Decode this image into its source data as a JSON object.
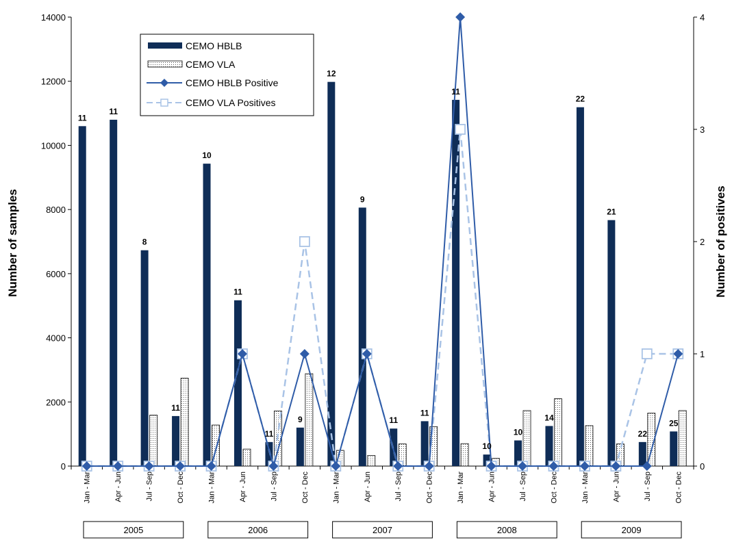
{
  "colors": {
    "hblb_bar": "#0f2d57",
    "hblb_line": "#2f5ca8",
    "vla_line": "#a9c3e6",
    "vla_bar_fill": "#ffffff",
    "vla_bar_dots": "#555555"
  },
  "chart_data": {
    "type": "bar",
    "title": "",
    "ylabel": "Number of samples",
    "y2label": "Number of positives",
    "ylim": [
      0,
      14000
    ],
    "y2lim": [
      0,
      4
    ],
    "yticks": [
      0,
      2000,
      4000,
      6000,
      8000,
      10000,
      12000,
      14000
    ],
    "y2ticks": [
      0,
      1,
      2,
      3,
      4
    ],
    "categories": [
      "Jan - Mar",
      "Apr - Jun",
      "Jul - Sep",
      "Oct - Dec",
      "Jan - Mar",
      "Apr - Jun",
      "Jul - Sep",
      "Oct - Dec",
      "Jan - Mar",
      "Apr - Jun",
      "Jul - Sep",
      "Oct - Dec",
      "Jan - Mar",
      "Apr - Jun",
      "Jul - Sep",
      "Oct - Dec",
      "Jan - Mar",
      "Apr - Jun",
      "Jul - Sep",
      "Oct - Dec"
    ],
    "groups": [
      {
        "label": "2005",
        "count": 4
      },
      {
        "label": "2006",
        "count": 4
      },
      {
        "label": "2007",
        "count": 4
      },
      {
        "label": "2008",
        "count": 4
      },
      {
        "label": "2009",
        "count": 4
      }
    ],
    "legend_position": "top-left",
    "grid": false,
    "series": [
      {
        "name": "CEMO HBLB",
        "type": "bar",
        "axis": "left",
        "values": [
          10600,
          10800,
          6730,
          1560,
          9430,
          5170,
          750,
          1200,
          11980,
          8060,
          1170,
          1400,
          11420,
          360,
          800,
          1250,
          11190,
          7670,
          750,
          1080
        ],
        "data_labels": [
          "11",
          "11",
          "8",
          "11",
          "10",
          "11",
          "11",
          "9",
          "12",
          "9",
          "11",
          "11",
          "11",
          "10",
          "10",
          "14",
          "22",
          "21",
          "22",
          "25"
        ]
      },
      {
        "name": "CEMO VLA",
        "type": "bar",
        "axis": "left",
        "values": [
          0,
          0,
          1590,
          2740,
          1280,
          530,
          1720,
          2880,
          490,
          330,
          690,
          1230,
          700,
          240,
          1730,
          2100,
          1260,
          690,
          1650,
          1730
        ]
      },
      {
        "name": "CEMO HBLB Positive",
        "type": "line",
        "axis": "right",
        "values": [
          0,
          0,
          0,
          0,
          0,
          1,
          0,
          1,
          0,
          1,
          0,
          0,
          4,
          0,
          0,
          0,
          0,
          0,
          0,
          1
        ]
      },
      {
        "name": "CEMO VLA Positives",
        "type": "line",
        "axis": "right",
        "values": [
          0,
          0,
          0,
          0,
          0,
          1,
          0,
          2,
          0,
          1,
          0,
          0,
          3,
          0,
          0,
          0,
          0,
          0,
          1,
          1
        ]
      }
    ]
  }
}
